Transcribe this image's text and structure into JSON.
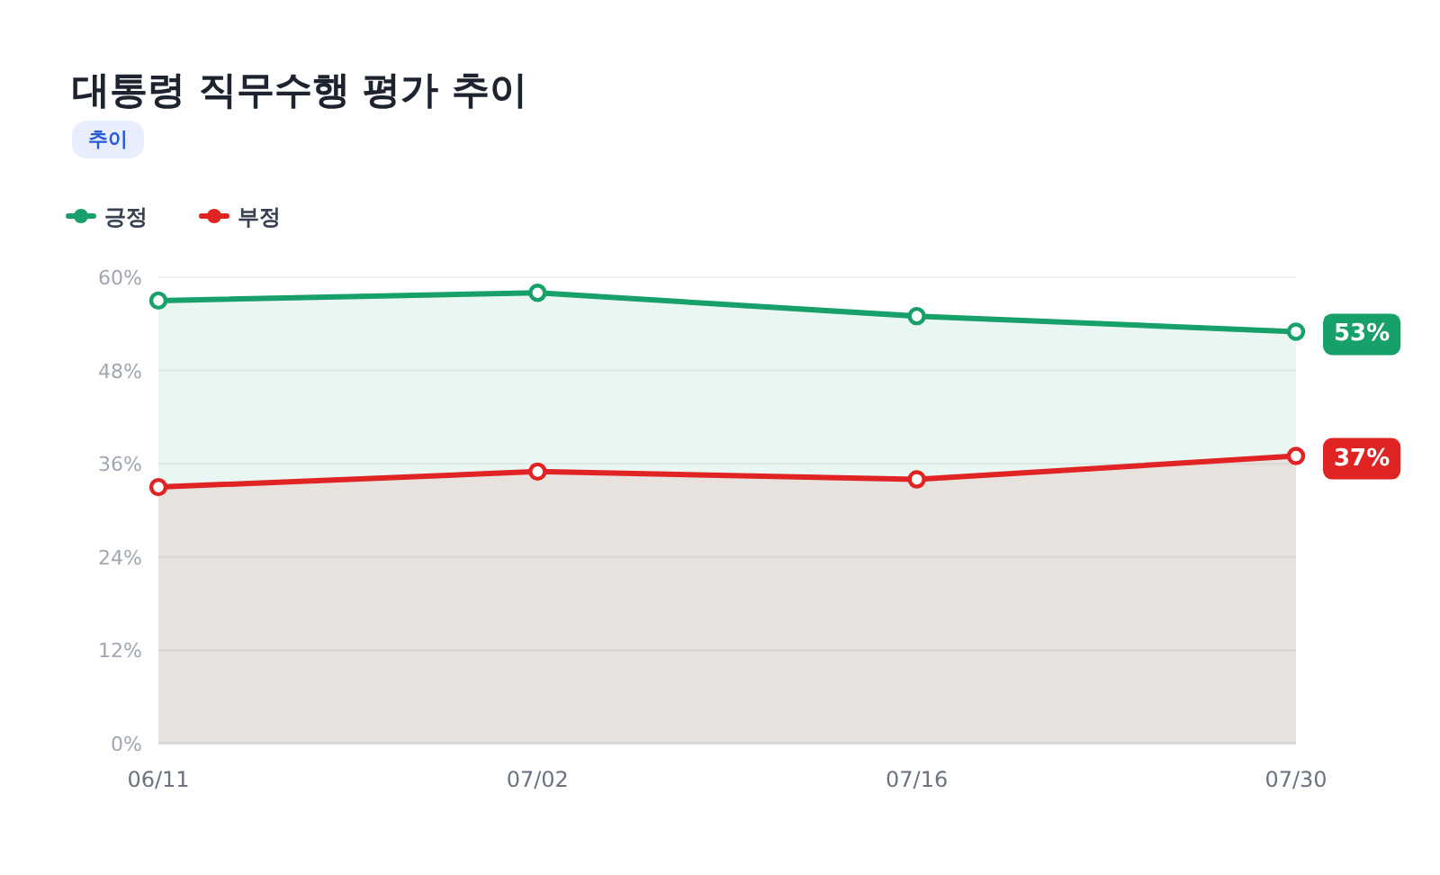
{
  "chart_data": {
    "type": "area",
    "title": "대통령 직무수행 평가 추이",
    "subtitle": "추이",
    "categories": [
      "06/11",
      "07/02",
      "07/16",
      "07/30"
    ],
    "series": [
      {
        "name": "긍정",
        "color": "#17a06a",
        "values": [
          57,
          58,
          55,
          53
        ],
        "value_labels": [
          null,
          null,
          null,
          "53%"
        ]
      },
      {
        "name": "부정",
        "color": "#e02424",
        "values": [
          33,
          35,
          34,
          37
        ],
        "value_labels": [
          null,
          null,
          null,
          "37%"
        ]
      }
    ],
    "ylim": [
      0,
      60
    ],
    "yticks": [
      {
        "value": 0,
        "label": "0%"
      },
      {
        "value": 12,
        "label": "12%"
      },
      {
        "value": 24,
        "label": "24%"
      },
      {
        "value": 36,
        "label": "36%"
      },
      {
        "value": 48,
        "label": "48%"
      },
      {
        "value": 60,
        "label": "60%"
      }
    ],
    "grid": "y",
    "legend": "top left",
    "marker": "circle"
  }
}
